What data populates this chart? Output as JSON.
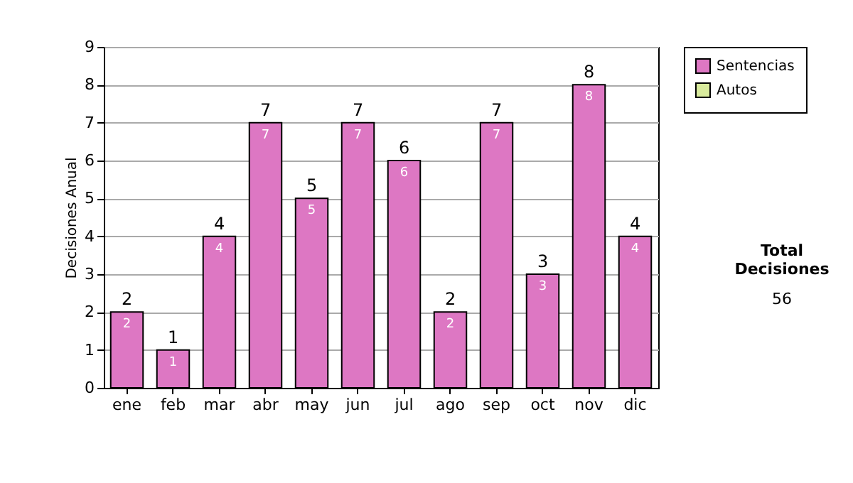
{
  "chart_data": {
    "type": "bar",
    "ylabel": "Decisiones Anual",
    "categories": [
      "ene",
      "feb",
      "mar",
      "abr",
      "may",
      "jun",
      "jul",
      "ago",
      "sep",
      "oct",
      "nov",
      "dic"
    ],
    "series": [
      {
        "name": "Sentencias",
        "color": "#dd77c3",
        "values": [
          2,
          1,
          4,
          7,
          5,
          7,
          6,
          2,
          7,
          3,
          8,
          4
        ]
      },
      {
        "name": "Autos",
        "color": "#d9eb9d",
        "values": [
          null,
          null,
          null,
          null,
          null,
          null,
          null,
          null,
          null,
          null,
          null,
          null
        ]
      }
    ],
    "ylim": [
      0,
      9
    ],
    "yticks": [
      0,
      1,
      2,
      3,
      4,
      5,
      6,
      7,
      8,
      9
    ],
    "grid": "y",
    "legend": "right",
    "data_labels": true,
    "annotations": [
      "Total Decisiones",
      "56",
      {
        "text": "2",
        "x": "ene",
        "y": 2
      },
      {
        "text": "1",
        "x": "feb",
        "y": 1
      },
      {
        "text": "4",
        "x": "mar",
        "y": 4
      },
      {
        "text": "7",
        "x": "abr",
        "y": 7
      },
      {
        "text": "5",
        "x": "may",
        "y": 5
      },
      {
        "text": "7",
        "x": "jun",
        "y": 7
      },
      {
        "text": "6",
        "x": "jul",
        "y": 6
      },
      {
        "text": "2",
        "x": "ago",
        "y": 2
      },
      {
        "text": "7",
        "x": "sep",
        "y": 7
      },
      {
        "text": "3",
        "x": "oct",
        "y": 3
      },
      {
        "text": "8",
        "x": "nov",
        "y": 8
      },
      {
        "text": "4",
        "x": "dic",
        "y": 4
      }
    ]
  }
}
